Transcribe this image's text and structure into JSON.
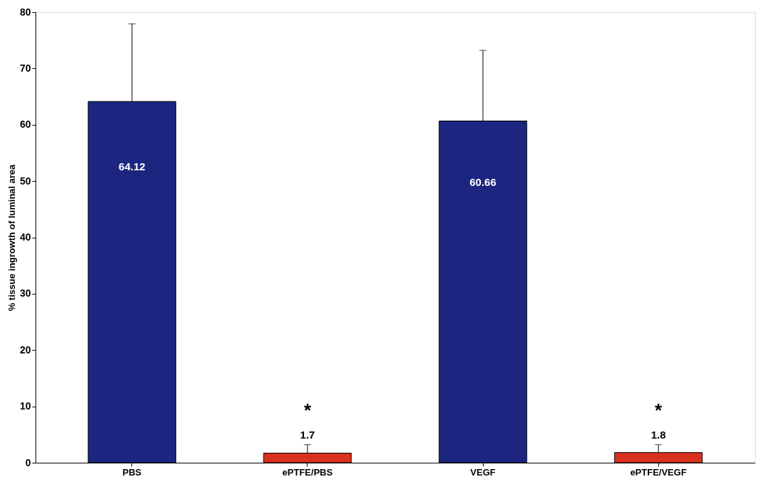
{
  "chart_data": {
    "type": "bar",
    "ylabel": "% tissue ingrowth of luminal area",
    "categories": [
      "PBS",
      "ePTFE/PBS",
      "VEGF",
      "ePTFE/VEGF"
    ],
    "values": [
      64.12,
      1.7,
      60.66,
      1.8
    ],
    "colors": [
      "#1c2680",
      "#d8321e",
      "#1c2680",
      "#d8321e"
    ],
    "errors": [
      [
        64.12,
        77.9
      ],
      [
        1.7,
        3.2
      ],
      [
        60.66,
        73.2
      ],
      [
        1.8,
        3.2
      ]
    ],
    "value_labels": [
      "64.12",
      "1.7",
      "60.66",
      "1.8"
    ],
    "annotations": [
      "*",
      "*"
    ],
    "ylim": [
      0,
      80
    ],
    "yticks": [
      0,
      10,
      20,
      30,
      40,
      50,
      60,
      70,
      80
    ],
    "grid": false
  }
}
